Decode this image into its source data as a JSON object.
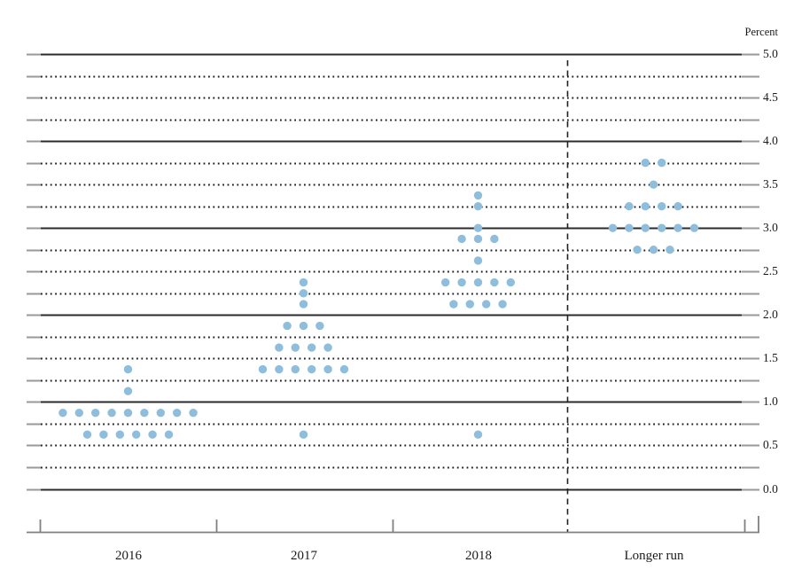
{
  "chart_data": {
    "type": "scatter",
    "subtype": "fomc-dot-plot",
    "ylabel": "Percent",
    "categories": [
      "2016",
      "2017",
      "2018",
      "Longer run"
    ],
    "ylim": [
      0.0,
      5.0
    ],
    "ytick_labels": [
      "5.0",
      "4.5",
      "4.0",
      "3.5",
      "3.0",
      "2.5",
      "2.0",
      "1.5",
      "1.0",
      "0.5",
      "0.0"
    ],
    "ytick_values": [
      5.0,
      4.5,
      4.0,
      3.5,
      3.0,
      2.5,
      2.0,
      1.5,
      1.0,
      0.5,
      0.0
    ],
    "grid": {
      "solid_lines_at": [
        0.0,
        1.0,
        2.0,
        3.0,
        4.0,
        5.0
      ],
      "dotted_line_step": 0.25,
      "line_color": "#2b2b2b",
      "end_cap_color": "#999999"
    },
    "separator": {
      "style": "dashed-vertical-line",
      "before_category": "Longer run"
    },
    "dot_color": "#8fbddc",
    "series": [
      {
        "name": "2016",
        "dots": [
          {
            "rate": 1.375,
            "count": 1
          },
          {
            "rate": 1.125,
            "count": 1
          },
          {
            "rate": 0.875,
            "count": 9
          },
          {
            "rate": 0.625,
            "count": 6
          }
        ]
      },
      {
        "name": "2017",
        "dots": [
          {
            "rate": 2.375,
            "count": 1
          },
          {
            "rate": 2.25,
            "count": 1
          },
          {
            "rate": 2.125,
            "count": 1
          },
          {
            "rate": 1.875,
            "count": 3
          },
          {
            "rate": 1.625,
            "count": 4
          },
          {
            "rate": 1.375,
            "count": 6
          },
          {
            "rate": 0.625,
            "count": 1
          }
        ]
      },
      {
        "name": "2018",
        "dots": [
          {
            "rate": 3.375,
            "count": 1
          },
          {
            "rate": 3.25,
            "count": 1
          },
          {
            "rate": 3.0,
            "count": 1
          },
          {
            "rate": 2.875,
            "count": 3
          },
          {
            "rate": 2.625,
            "count": 1
          },
          {
            "rate": 2.375,
            "count": 5
          },
          {
            "rate": 2.125,
            "count": 4
          },
          {
            "rate": 0.625,
            "count": 1
          }
        ]
      },
      {
        "name": "Longer run",
        "dots": [
          {
            "rate": 3.75,
            "count": 2
          },
          {
            "rate": 3.5,
            "count": 1
          },
          {
            "rate": 3.25,
            "count": 4
          },
          {
            "rate": 3.0,
            "count": 6
          },
          {
            "rate": 2.75,
            "count": 3
          }
        ]
      }
    ]
  }
}
